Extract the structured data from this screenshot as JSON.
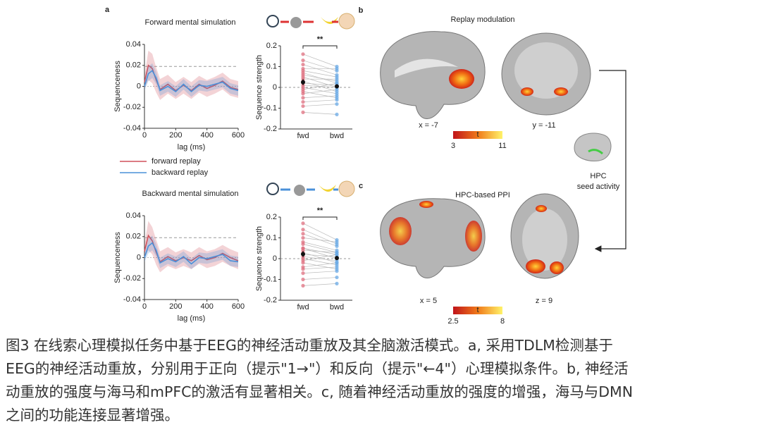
{
  "panel_a": {
    "label": "a",
    "forward": {
      "title": "Forward mental simulation",
      "sequenceness": {
        "type": "line",
        "ylabel": "Sequenceness",
        "xlabel": "lag (ms)",
        "xlim": [
          0,
          600
        ],
        "xticks": [
          0,
          200,
          400,
          600
        ],
        "ylim": [
          -0.04,
          0.04
        ],
        "yticks": [
          -0.04,
          -0.02,
          0,
          0.02,
          0.04
        ],
        "threshold": 0.019,
        "x": [
          0,
          25,
          50,
          75,
          100,
          150,
          200,
          250,
          300,
          350,
          400,
          450,
          500,
          550,
          600
        ],
        "series": [
          {
            "name": "forward replay",
            "color": "#d0505a",
            "values": [
              0.004,
              0.02,
              0.017,
              0.006,
              -0.003,
              0.002,
              -0.004,
              0.001,
              -0.004,
              0.002,
              -0.002,
              0.001,
              0.005,
              -0.001,
              -0.003
            ],
            "error": [
              0.006,
              0.014,
              0.014,
              0.012,
              0.01,
              0.009,
              0.008,
              0.008,
              0.008,
              0.008,
              0.008,
              0.008,
              0.008,
              0.008,
              0.008
            ]
          },
          {
            "name": "backward replay",
            "color": "#4a90d9",
            "values": [
              0.0,
              0.012,
              0.015,
              0.008,
              -0.004,
              0.0,
              -0.005,
              0.002,
              -0.005,
              0.001,
              0.0,
              0.002,
              0.004,
              -0.002,
              -0.004
            ],
            "error": [
              0.004,
              0.007,
              0.007,
              0.006,
              0.005,
              0.005,
              0.005,
              0.005,
              0.005,
              0.005,
              0.005,
              0.005,
              0.005,
              0.005,
              0.005
            ]
          }
        ]
      },
      "strength": {
        "type": "paired",
        "ylabel": "Sequence strength",
        "categories": [
          "fwd",
          "bwd"
        ],
        "ylim": [
          -0.2,
          0.2
        ],
        "yticks": [
          -0.2,
          -0.1,
          0,
          0.1,
          0.2
        ],
        "significance": "**",
        "colors": [
          "#e07080",
          "#6aaae6"
        ],
        "points": [
          [
            0.16,
            0.13,
            0.11,
            0.09,
            0.08,
            0.07,
            0.06,
            0.05,
            0.04,
            0.03,
            0.02,
            0.01,
            0.0,
            -0.01,
            -0.02,
            -0.03,
            -0.05,
            -0.07,
            -0.09,
            -0.12
          ],
          [
            0.1,
            0.08,
            0.06,
            0.09,
            0.05,
            0.02,
            0.03,
            0.0,
            0.04,
            -0.02,
            0.01,
            0.0,
            -0.03,
            0.02,
            -0.05,
            -0.01,
            -0.04,
            -0.06,
            -0.08,
            -0.13
          ]
        ],
        "means": [
          0.025,
          0.005
        ],
        "sem": [
          0.014,
          0.01
        ]
      }
    },
    "backward": {
      "title": "Backward mental simulation",
      "sequenceness": {
        "type": "line",
        "ylabel": "Sequenceness",
        "xlabel": "lag (ms)",
        "xlim": [
          0,
          600
        ],
        "xticks": [
          0,
          200,
          400,
          600
        ],
        "ylim": [
          -0.04,
          0.04
        ],
        "yticks": [
          -0.04,
          -0.02,
          0,
          0.02,
          0.04
        ],
        "threshold": 0.019,
        "x": [
          0,
          25,
          50,
          75,
          100,
          150,
          200,
          250,
          300,
          350,
          400,
          450,
          500,
          550,
          600
        ],
        "series": [
          {
            "color": "#d0505a",
            "values": [
              0.006,
              0.021,
              0.016,
              0.005,
              -0.004,
              0.001,
              -0.003,
              0.0,
              -0.003,
              0.002,
              -0.002,
              0.0,
              0.004,
              0.0,
              -0.003
            ],
            "error": [
              0.007,
              0.014,
              0.013,
              0.012,
              0.01,
              0.009,
              0.008,
              0.008,
              0.008,
              0.008,
              0.008,
              0.008,
              0.008,
              0.008,
              0.008
            ]
          },
          {
            "color": "#4a90d9",
            "values": [
              0.0,
              0.011,
              0.014,
              0.007,
              -0.005,
              -0.001,
              -0.004,
              0.001,
              -0.006,
              0.0,
              -0.001,
              0.001,
              0.003,
              -0.003,
              -0.004
            ],
            "error": [
              0.004,
              0.007,
              0.007,
              0.006,
              0.005,
              0.005,
              0.005,
              0.005,
              0.005,
              0.005,
              0.005,
              0.005,
              0.005,
              0.005,
              0.005
            ]
          }
        ]
      },
      "strength": {
        "type": "paired",
        "ylabel": "Sequence strength",
        "categories": [
          "fwd",
          "bwd"
        ],
        "ylim": [
          -0.2,
          0.2
        ],
        "yticks": [
          -0.2,
          -0.1,
          0,
          0.1,
          0.2
        ],
        "significance": "**",
        "colors": [
          "#e07080",
          "#6aaae6"
        ],
        "points": [
          [
            0.17,
            0.14,
            0.12,
            0.1,
            0.08,
            0.07,
            0.05,
            0.05,
            0.04,
            0.03,
            0.02,
            0.01,
            0.0,
            -0.01,
            -0.02,
            -0.04,
            -0.05,
            -0.07,
            -0.1,
            -0.13
          ],
          [
            0.09,
            0.07,
            0.06,
            0.08,
            0.04,
            0.03,
            0.02,
            0.0,
            0.03,
            -0.02,
            0.01,
            -0.01,
            -0.03,
            0.02,
            -0.05,
            -0.02,
            -0.04,
            -0.06,
            -0.09,
            -0.12
          ]
        ],
        "means": [
          0.022,
          0.003
        ],
        "sem": [
          0.014,
          0.01
        ]
      }
    }
  },
  "panel_b": {
    "label": "b",
    "title": "Replay modulation",
    "slices": [
      "x = -7",
      "y = -11"
    ],
    "colorbar": {
      "label": "t",
      "ticks": [
        3,
        11
      ]
    }
  },
  "seed": {
    "lines": [
      "HPC",
      "seed activity"
    ]
  },
  "panel_c": {
    "label": "c",
    "title": "HPC-based PPI",
    "slices": [
      "x = 5",
      "z = 9"
    ],
    "colorbar": {
      "label": "t",
      "ticks": [
        2.5,
        8
      ]
    }
  },
  "caption": [
    "图3 在线索心理模拟任务中基于EEG的神经活动重放及其全脑激活模式。a, 采用TDLM检测基于",
    "EEG的神经活动重放，分别用于正向（提示\"1→\"）和反向（提示\"←4\"）心理模拟条件。b, 神经活",
    "动重放的强度与海马和mPFC的激活有显著相关。c, 随着神经活动重放的强度的增强，海马与DMN",
    "之间的功能连接显著增强。"
  ]
}
